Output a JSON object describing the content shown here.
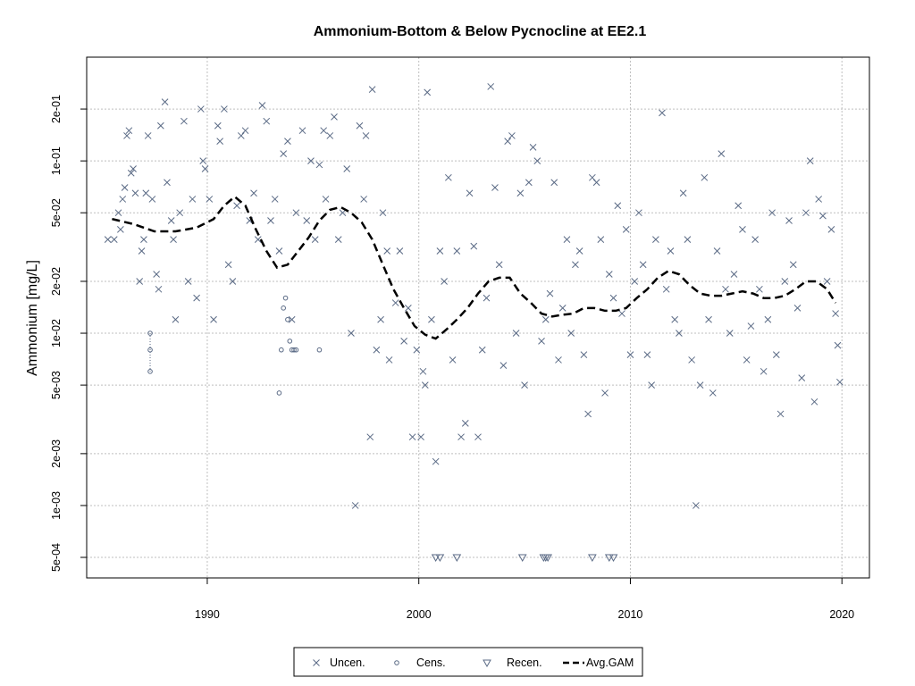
{
  "chart_data": {
    "type": "scatter",
    "title": "Ammonium-Bottom & Below Pycnocline at EE2.1",
    "xlabel": "",
    "ylabel": "Ammonium [mg/L]",
    "xlim": [
      1984.3,
      2021.3
    ],
    "ylim": [
      0.00038,
      0.4
    ],
    "ylog": true,
    "grid": true,
    "x_ticks": [
      1990,
      2000,
      2010,
      2020
    ],
    "x_tick_labels": [
      "1990",
      "2000",
      "2010",
      "2020"
    ],
    "y_ticks": [
      0.0005,
      0.001,
      0.002,
      0.005,
      0.01,
      0.02,
      0.05,
      0.1,
      0.2
    ],
    "y_tick_labels": [
      "5e-04",
      "1e-03",
      "2e-03",
      "5e-03",
      "1e-02",
      "2e-02",
      "5e-02",
      "1e-01",
      "2e-01"
    ],
    "legend_position": "bottom",
    "colors": {
      "points": "#5a6a85",
      "gam": "#000000",
      "grid": "#bfbfbf"
    },
    "series": [
      {
        "name": "Uncen.",
        "marker": "x",
        "points": [
          [
            1985.3,
            0.035
          ],
          [
            1985.6,
            0.035
          ],
          [
            1985.8,
            0.05
          ],
          [
            1985.9,
            0.04
          ],
          [
            1986.0,
            0.06
          ],
          [
            1986.1,
            0.07
          ],
          [
            1986.2,
            0.14
          ],
          [
            1986.3,
            0.15
          ],
          [
            1986.4,
            0.085
          ],
          [
            1986.5,
            0.09
          ],
          [
            1986.6,
            0.065
          ],
          [
            1986.8,
            0.02
          ],
          [
            1986.9,
            0.03
          ],
          [
            1987.0,
            0.035
          ],
          [
            1987.1,
            0.065
          ],
          [
            1987.2,
            0.14
          ],
          [
            1987.4,
            0.06
          ],
          [
            1987.6,
            0.022
          ],
          [
            1987.7,
            0.018
          ],
          [
            1987.8,
            0.16
          ],
          [
            1988.0,
            0.22
          ],
          [
            1988.1,
            0.075
          ],
          [
            1988.3,
            0.045
          ],
          [
            1988.4,
            0.035
          ],
          [
            1988.5,
            0.012
          ],
          [
            1988.7,
            0.05
          ],
          [
            1988.9,
            0.17
          ],
          [
            1989.1,
            0.02
          ],
          [
            1989.3,
            0.06
          ],
          [
            1989.5,
            0.016
          ],
          [
            1989.7,
            0.2
          ],
          [
            1989.8,
            0.1
          ],
          [
            1989.9,
            0.09
          ],
          [
            1990.1,
            0.06
          ],
          [
            1990.3,
            0.012
          ],
          [
            1990.5,
            0.16
          ],
          [
            1990.6,
            0.13
          ],
          [
            1990.8,
            0.2
          ],
          [
            1991.0,
            0.025
          ],
          [
            1991.2,
            0.02
          ],
          [
            1991.4,
            0.055
          ],
          [
            1991.6,
            0.14
          ],
          [
            1991.8,
            0.15
          ],
          [
            1992.0,
            0.045
          ],
          [
            1992.2,
            0.065
          ],
          [
            1992.4,
            0.035
          ],
          [
            1992.6,
            0.21
          ],
          [
            1992.8,
            0.17
          ],
          [
            1993.0,
            0.045
          ],
          [
            1993.2,
            0.06
          ],
          [
            1993.4,
            0.03
          ],
          [
            1993.6,
            0.11
          ],
          [
            1993.8,
            0.13
          ],
          [
            1994.0,
            0.012
          ],
          [
            1994.2,
            0.05
          ],
          [
            1994.5,
            0.15
          ],
          [
            1994.7,
            0.045
          ],
          [
            1994.9,
            0.1
          ],
          [
            1995.1,
            0.035
          ],
          [
            1995.3,
            0.095
          ],
          [
            1995.5,
            0.15
          ],
          [
            1995.6,
            0.06
          ],
          [
            1995.8,
            0.14
          ],
          [
            1996.0,
            0.18
          ],
          [
            1996.2,
            0.035
          ],
          [
            1996.4,
            0.05
          ],
          [
            1996.6,
            0.09
          ],
          [
            1996.8,
            0.01
          ],
          [
            1997.0,
            0.001
          ],
          [
            1997.2,
            0.16
          ],
          [
            1997.4,
            0.06
          ],
          [
            1997.5,
            0.14
          ],
          [
            1997.7,
            0.0025
          ],
          [
            1997.8,
            0.26
          ],
          [
            1998.0,
            0.008
          ],
          [
            1998.2,
            0.012
          ],
          [
            1998.3,
            0.05
          ],
          [
            1998.5,
            0.03
          ],
          [
            1998.6,
            0.007
          ],
          [
            1998.9,
            0.015
          ],
          [
            1999.1,
            0.03
          ],
          [
            1999.3,
            0.009
          ],
          [
            1999.5,
            0.014
          ],
          [
            1999.7,
            0.0025
          ],
          [
            1999.9,
            0.008
          ],
          [
            2000.1,
            0.0025
          ],
          [
            2000.2,
            0.006
          ],
          [
            2000.3,
            0.005
          ],
          [
            2000.4,
            0.25
          ],
          [
            2000.6,
            0.012
          ],
          [
            2000.8,
            0.0018
          ],
          [
            2001.0,
            0.03
          ],
          [
            2001.2,
            0.02
          ],
          [
            2001.4,
            0.08
          ],
          [
            2001.6,
            0.007
          ],
          [
            2001.8,
            0.03
          ],
          [
            2002.0,
            0.0025
          ],
          [
            2002.2,
            0.003
          ],
          [
            2002.4,
            0.065
          ],
          [
            2002.6,
            0.032
          ],
          [
            2002.8,
            0.0025
          ],
          [
            2003.0,
            0.008
          ],
          [
            2003.2,
            0.016
          ],
          [
            2003.4,
            0.27
          ],
          [
            2003.6,
            0.07
          ],
          [
            2003.8,
            0.025
          ],
          [
            2004.0,
            0.0065
          ],
          [
            2004.2,
            0.13
          ],
          [
            2004.4,
            0.14
          ],
          [
            2004.6,
            0.01
          ],
          [
            2004.8,
            0.065
          ],
          [
            2005.0,
            0.005
          ],
          [
            2005.2,
            0.075
          ],
          [
            2005.4,
            0.12
          ],
          [
            2005.6,
            0.1
          ],
          [
            2005.8,
            0.009
          ],
          [
            2006.0,
            0.012
          ],
          [
            2006.2,
            0.017
          ],
          [
            2006.4,
            0.075
          ],
          [
            2006.6,
            0.007
          ],
          [
            2006.8,
            0.014
          ],
          [
            2007.0,
            0.035
          ],
          [
            2007.2,
            0.01
          ],
          [
            2007.4,
            0.025
          ],
          [
            2007.6,
            0.03
          ],
          [
            2007.8,
            0.0075
          ],
          [
            2008.0,
            0.0034
          ],
          [
            2008.2,
            0.08
          ],
          [
            2008.4,
            0.075
          ],
          [
            2008.6,
            0.035
          ],
          [
            2008.8,
            0.0045
          ],
          [
            2009.0,
            0.022
          ],
          [
            2009.2,
            0.016
          ],
          [
            2009.4,
            0.055
          ],
          [
            2009.6,
            0.013
          ],
          [
            2009.8,
            0.04
          ],
          [
            2010.0,
            0.0075
          ],
          [
            2010.2,
            0.02
          ],
          [
            2010.4,
            0.05
          ],
          [
            2010.6,
            0.025
          ],
          [
            2010.8,
            0.0075
          ],
          [
            2011.0,
            0.005
          ],
          [
            2011.2,
            0.035
          ],
          [
            2011.5,
            0.19
          ],
          [
            2011.7,
            0.018
          ],
          [
            2011.9,
            0.03
          ],
          [
            2012.1,
            0.012
          ],
          [
            2012.3,
            0.01
          ],
          [
            2012.5,
            0.065
          ],
          [
            2012.7,
            0.035
          ],
          [
            2012.9,
            0.007
          ],
          [
            2013.1,
            0.001
          ],
          [
            2013.3,
            0.005
          ],
          [
            2013.5,
            0.08
          ],
          [
            2013.7,
            0.012
          ],
          [
            2013.9,
            0.0045
          ],
          [
            2014.1,
            0.03
          ],
          [
            2014.3,
            0.11
          ],
          [
            2014.5,
            0.018
          ],
          [
            2014.7,
            0.01
          ],
          [
            2014.9,
            0.022
          ],
          [
            2015.1,
            0.055
          ],
          [
            2015.3,
            0.04
          ],
          [
            2015.5,
            0.007
          ],
          [
            2015.7,
            0.011
          ],
          [
            2015.9,
            0.035
          ],
          [
            2016.1,
            0.018
          ],
          [
            2016.3,
            0.006
          ],
          [
            2016.5,
            0.012
          ],
          [
            2016.7,
            0.05
          ],
          [
            2016.9,
            0.0075
          ],
          [
            2017.1,
            0.0034
          ],
          [
            2017.3,
            0.02
          ],
          [
            2017.5,
            0.045
          ],
          [
            2017.7,
            0.025
          ],
          [
            2017.9,
            0.014
          ],
          [
            2018.1,
            0.0055
          ],
          [
            2018.3,
            0.05
          ],
          [
            2018.5,
            0.1
          ],
          [
            2018.7,
            0.004
          ],
          [
            2018.9,
            0.06
          ],
          [
            2019.1,
            0.048
          ],
          [
            2019.3,
            0.02
          ],
          [
            2019.5,
            0.04
          ],
          [
            2019.7,
            0.013
          ],
          [
            2019.8,
            0.0085
          ],
          [
            2019.9,
            0.0052
          ]
        ]
      },
      {
        "name": "Cens.",
        "marker": "circle",
        "points": [
          [
            1987.3,
            0.01
          ],
          [
            1987.3,
            0.008
          ],
          [
            1987.3,
            0.006
          ],
          [
            1993.4,
            0.0045
          ],
          [
            1993.5,
            0.008
          ],
          [
            1993.6,
            0.014
          ],
          [
            1993.7,
            0.016
          ],
          [
            1993.8,
            0.012
          ],
          [
            1993.9,
            0.009
          ],
          [
            1994.0,
            0.008
          ],
          [
            1994.1,
            0.008
          ],
          [
            1994.2,
            0.008
          ],
          [
            1995.3,
            0.008
          ]
        ]
      },
      {
        "name": "Recen.",
        "marker": "triangle-down",
        "points": [
          [
            2000.8,
            0.0005
          ],
          [
            2001.0,
            0.0005
          ],
          [
            2001.8,
            0.0005
          ],
          [
            2004.9,
            0.0005
          ],
          [
            2005.9,
            0.0005
          ],
          [
            2006.0,
            0.0005
          ],
          [
            2006.1,
            0.0005
          ],
          [
            2008.2,
            0.0005
          ],
          [
            2009.0,
            0.0005
          ],
          [
            2009.2,
            0.0005
          ]
        ]
      },
      {
        "name": "Avg.GAM",
        "line": "dashed",
        "points": [
          [
            1985.5,
            0.046
          ],
          [
            1986.5,
            0.043
          ],
          [
            1987.5,
            0.039
          ],
          [
            1988.5,
            0.039
          ],
          [
            1989.5,
            0.041
          ],
          [
            1990.3,
            0.046
          ],
          [
            1990.8,
            0.055
          ],
          [
            1991.3,
            0.062
          ],
          [
            1991.8,
            0.055
          ],
          [
            1992.3,
            0.04
          ],
          [
            1992.8,
            0.03
          ],
          [
            1993.3,
            0.024
          ],
          [
            1993.8,
            0.025
          ],
          [
            1994.3,
            0.03
          ],
          [
            1994.8,
            0.036
          ],
          [
            1995.3,
            0.045
          ],
          [
            1995.8,
            0.052
          ],
          [
            1996.3,
            0.054
          ],
          [
            1996.8,
            0.05
          ],
          [
            1997.3,
            0.044
          ],
          [
            1997.8,
            0.035
          ],
          [
            1998.3,
            0.025
          ],
          [
            1998.8,
            0.018
          ],
          [
            1999.3,
            0.014
          ],
          [
            1999.8,
            0.011
          ],
          [
            2000.3,
            0.0098
          ],
          [
            2000.8,
            0.0093
          ],
          [
            2001.3,
            0.0105
          ],
          [
            2001.8,
            0.012
          ],
          [
            2002.3,
            0.014
          ],
          [
            2002.8,
            0.017
          ],
          [
            2003.3,
            0.02
          ],
          [
            2003.8,
            0.021
          ],
          [
            2004.3,
            0.021
          ],
          [
            2004.8,
            0.017
          ],
          [
            2005.3,
            0.015
          ],
          [
            2005.8,
            0.013
          ],
          [
            2006.3,
            0.0125
          ],
          [
            2006.8,
            0.0128
          ],
          [
            2007.3,
            0.013
          ],
          [
            2007.8,
            0.014
          ],
          [
            2008.3,
            0.014
          ],
          [
            2008.8,
            0.0135
          ],
          [
            2009.3,
            0.0135
          ],
          [
            2009.8,
            0.014
          ],
          [
            2010.3,
            0.016
          ],
          [
            2010.8,
            0.018
          ],
          [
            2011.3,
            0.021
          ],
          [
            2011.8,
            0.023
          ],
          [
            2012.3,
            0.022
          ],
          [
            2012.8,
            0.019
          ],
          [
            2013.3,
            0.017
          ],
          [
            2013.8,
            0.0165
          ],
          [
            2014.3,
            0.0165
          ],
          [
            2014.8,
            0.017
          ],
          [
            2015.3,
            0.0175
          ],
          [
            2015.8,
            0.017
          ],
          [
            2016.3,
            0.016
          ],
          [
            2016.8,
            0.016
          ],
          [
            2017.3,
            0.0165
          ],
          [
            2017.8,
            0.018
          ],
          [
            2018.3,
            0.02
          ],
          [
            2018.8,
            0.02
          ],
          [
            2019.3,
            0.018
          ],
          [
            2019.7,
            0.015
          ]
        ]
      }
    ]
  }
}
